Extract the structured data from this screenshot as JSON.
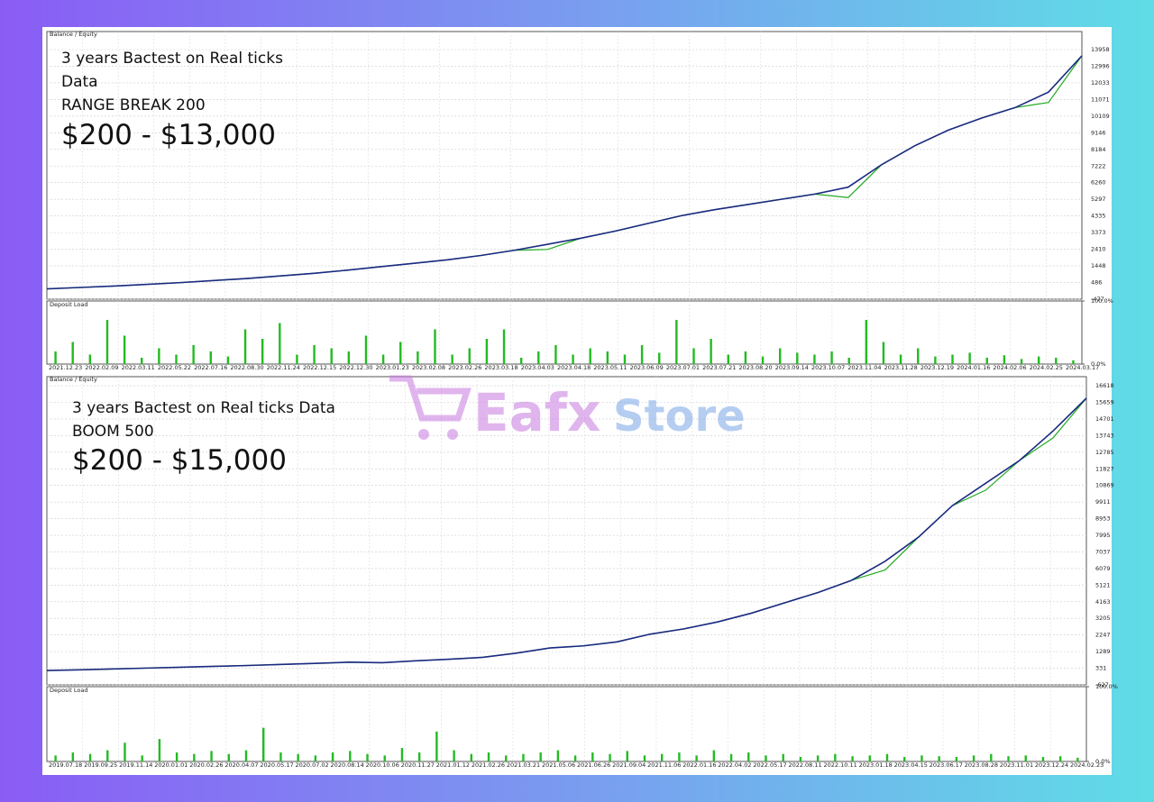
{
  "chart_data": [
    {
      "type": "line",
      "legend": "Balance / Equity",
      "annotations": [
        "3 years Bactest on Real ticks",
        "Data",
        "RANGE BREAK 200",
        "$200 - $13,000"
      ],
      "ylim": [
        -477,
        15000
      ],
      "grid": true,
      "yticks": [
        13958,
        12996,
        12033,
        11071,
        10109,
        9146,
        8184,
        7222,
        6260,
        5297,
        4335,
        3373,
        2410,
        1448,
        486,
        -477
      ],
      "series": [
        {
          "color": "#1a2a80",
          "values": [
            120,
            200,
            280,
            380,
            480,
            600,
            720,
            870,
            1020,
            1200,
            1400,
            1600,
            1800,
            2050,
            2350,
            2700,
            3050,
            3450,
            3900,
            4350,
            4700,
            5000,
            5300,
            5600,
            6000,
            7300,
            8400,
            9300,
            10000,
            10600,
            11500,
            13600
          ]
        },
        {
          "color": "#22aa22",
          "values": [
            120,
            200,
            280,
            380,
            480,
            600,
            720,
            870,
            1020,
            1200,
            1400,
            1600,
            1800,
            2050,
            2350,
            2400,
            3050,
            3450,
            3900,
            4350,
            4700,
            5000,
            5300,
            5600,
            5400,
            7300,
            8400,
            9300,
            10000,
            10600,
            10900,
            13600
          ]
        }
      ]
    },
    {
      "type": "bar",
      "title": "Deposit Load",
      "color": "#22bb22",
      "ylim": [
        0,
        100
      ],
      "yticks": [
        {
          "value": 100,
          "label": "100.0%"
        },
        {
          "value": 0,
          "label": "0.0%"
        }
      ],
      "date_labels": [
        "2021.12.23",
        "2022.02.09",
        "2022.03.11",
        "2022.05.22",
        "2022.07.16",
        "2022.08.30",
        "2022.11.24",
        "2022.12.15",
        "2022.12.30",
        "2023.01.23",
        "2023.02.08",
        "2023.02.26",
        "2023.03.18",
        "2023.04.03",
        "2023.04.18",
        "2023.05.11",
        "2023.06.09",
        "2023.07.01",
        "2023.07.21",
        "2023.08.20",
        "2023.09.14",
        "2023.10.07",
        "2023.11.04",
        "2023.11.28",
        "2023.12.19",
        "2024.01.16",
        "2024.02.06",
        "2024.02.25",
        "2024.03.17"
      ],
      "values": [
        20,
        35,
        15,
        70,
        45,
        10,
        25,
        15,
        30,
        20,
        12,
        55,
        40,
        65,
        15,
        30,
        25,
        20,
        45,
        15,
        35,
        20,
        55,
        15,
        25,
        40,
        55,
        10,
        20,
        30,
        15,
        25,
        20,
        15,
        30,
        18,
        70,
        25,
        40,
        15,
        20,
        12,
        25,
        18,
        15,
        20,
        10,
        70,
        35,
        15,
        25,
        12,
        15,
        18,
        10,
        14,
        8,
        12,
        10,
        6
      ]
    },
    {
      "type": "line",
      "legend": "Balance / Equity",
      "annotations": [
        "3 years Bactest on Real ticks Data",
        "BOOM 500",
        "$200 - $15,000"
      ],
      "ylim": [
        -627,
        17140
      ],
      "grid": true,
      "yticks": [
        16618,
        15659,
        14701,
        13743,
        12785,
        11827,
        10869,
        9911,
        8953,
        7995,
        7037,
        6079,
        5121,
        4163,
        3205,
        2247,
        1289,
        331,
        -627
      ],
      "series": [
        {
          "color": "#1a2a80",
          "values": [
            200,
            240,
            290,
            340,
            390,
            440,
            490,
            550,
            610,
            680,
            650,
            760,
            850,
            960,
            1200,
            1500,
            1620,
            1850,
            2300,
            2600,
            3000,
            3500,
            4100,
            4700,
            5400,
            6500,
            7900,
            9700,
            11000,
            12300,
            14000,
            15900
          ]
        },
        {
          "color": "#22aa22",
          "values": [
            200,
            240,
            290,
            340,
            390,
            440,
            490,
            550,
            610,
            680,
            650,
            760,
            850,
            960,
            1200,
            1500,
            1620,
            1850,
            2300,
            2600,
            3000,
            3500,
            4100,
            4700,
            5400,
            6000,
            7900,
            9700,
            10600,
            12300,
            13600,
            15900
          ]
        }
      ]
    },
    {
      "type": "bar",
      "title": "Deposit Load",
      "color": "#22bb22",
      "ylim": [
        0,
        100
      ],
      "yticks": [
        {
          "value": 100,
          "label": "100.0%"
        },
        {
          "value": 0,
          "label": "0.0%"
        }
      ],
      "date_labels": [
        "2019.07.18",
        "2019.09.25",
        "2019.11.14",
        "2020.01.01",
        "2020.02.26",
        "2020.04.07",
        "2020.05.17",
        "2020.07.02",
        "2020.08.14",
        "2020.10.06",
        "2020.11.27",
        "2021.01.12",
        "2021.02.26",
        "2021.03.21",
        "2021.05.06",
        "2021.06.26",
        "2021.09.04",
        "2021.11.06",
        "2022.01.16",
        "2022.04.02",
        "2022.05.17",
        "2022.08.11",
        "2022.10.11",
        "2023.01.18",
        "2023.04.15",
        "2023.06.17",
        "2023.08.28",
        "2023.11.01",
        "2023.12.24",
        "2024.02.23"
      ],
      "values": [
        8,
        12,
        10,
        15,
        25,
        8,
        30,
        12,
        10,
        14,
        10,
        15,
        45,
        12,
        10,
        8,
        12,
        14,
        10,
        8,
        18,
        12,
        40,
        15,
        10,
        12,
        8,
        10,
        12,
        15,
        8,
        12,
        10,
        14,
        8,
        10,
        12,
        8,
        15,
        10,
        12,
        8,
        10,
        6,
        8,
        10,
        7,
        8,
        10,
        6,
        8,
        7,
        6,
        8,
        10,
        7,
        8,
        6,
        7,
        5
      ]
    }
  ],
  "watermark": {
    "brand": "Eafx",
    "suffix": "Store"
  }
}
